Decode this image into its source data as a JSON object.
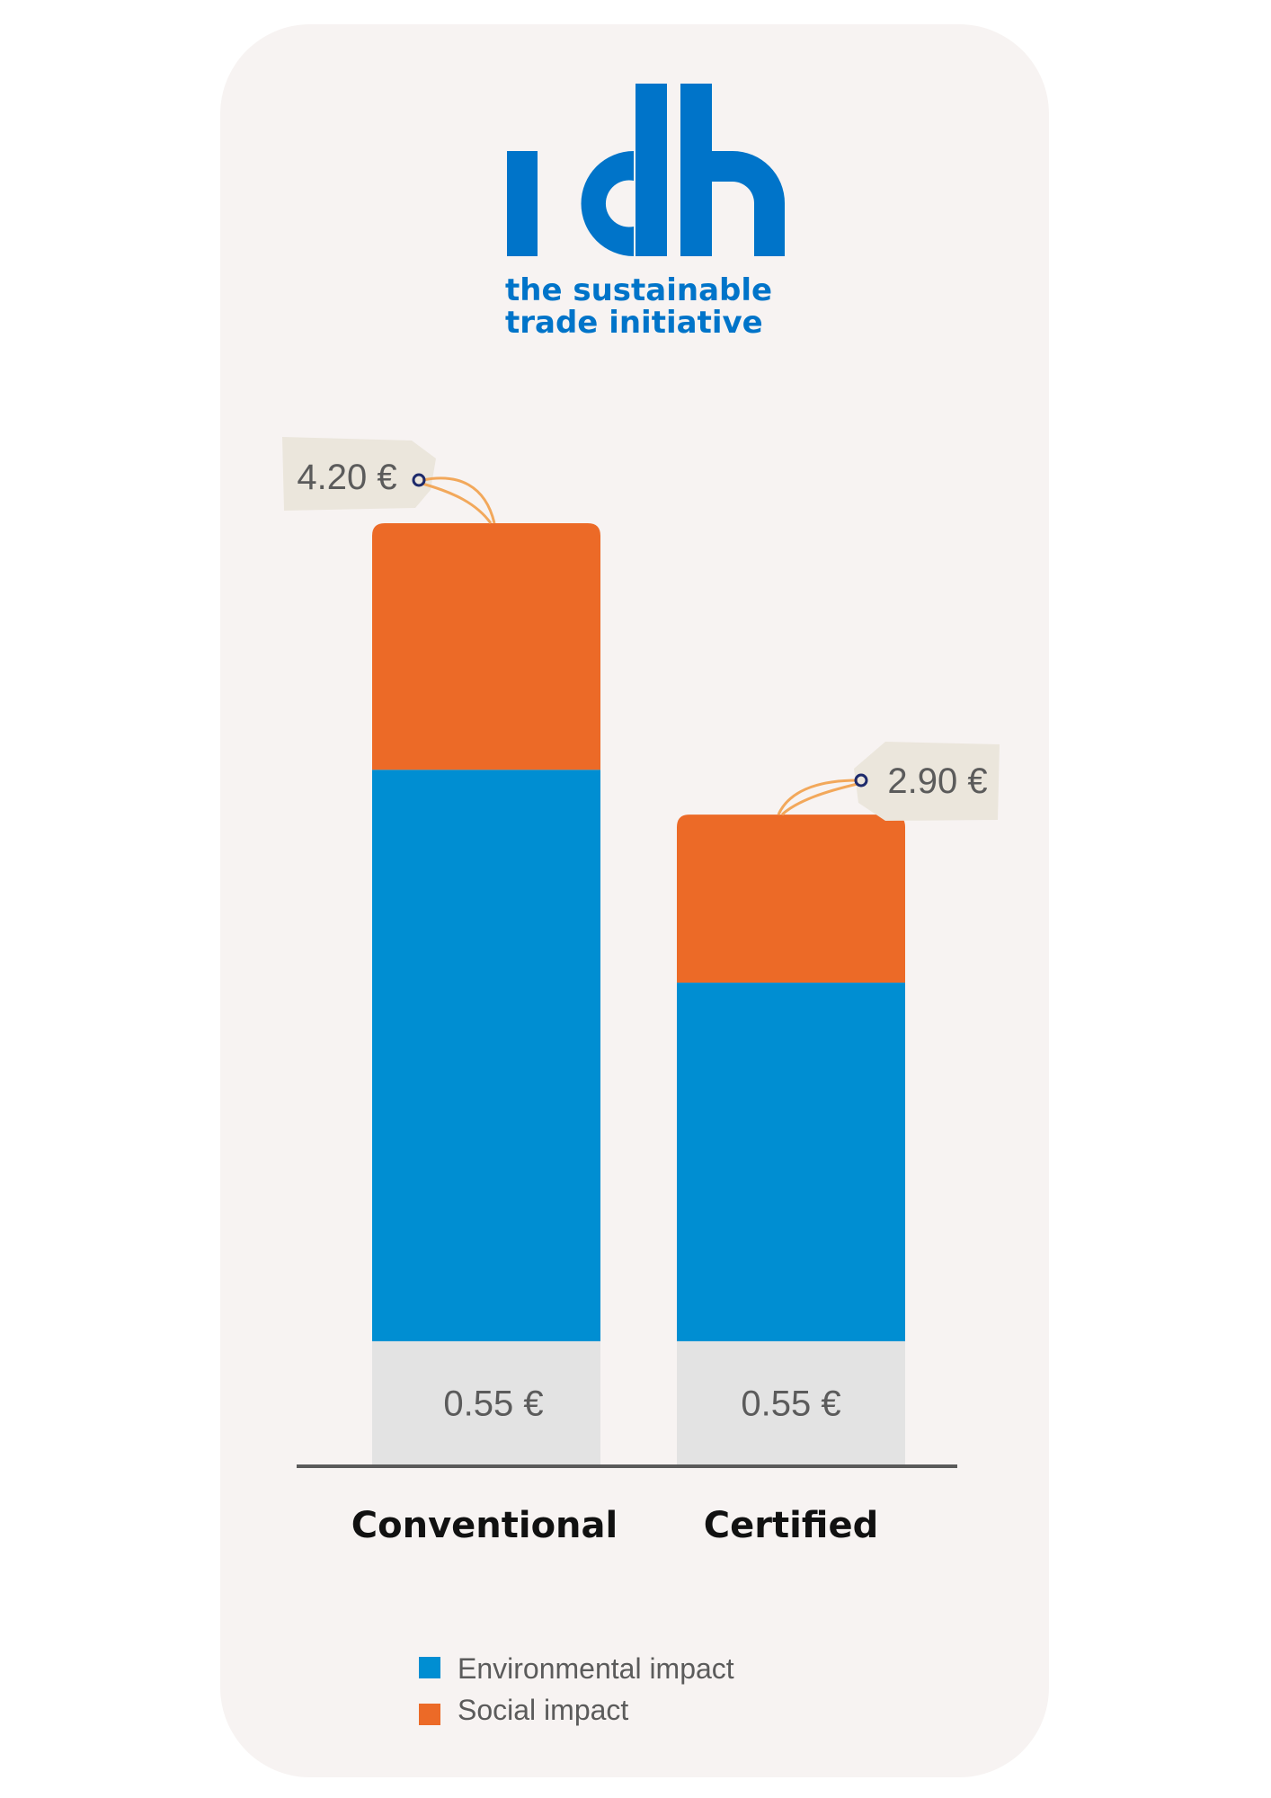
{
  "logo": {
    "wordmark": "idh",
    "line1": "the sustainable",
    "line2": "trade initiative"
  },
  "colors": {
    "card_background": "#f7f3f2",
    "environmental": "#008ed2",
    "social": "#ec6a27",
    "base": "#e3e3e3",
    "logo_blue": "#0074c9",
    "tag": "#ebe6dc",
    "string": "#f2a85b",
    "axis": "#5a5a5a",
    "price_text": "#5b5b5b",
    "category_text": "#111111"
  },
  "chart_data": {
    "type": "bar",
    "stacked": true,
    "categories": [
      "Conventional",
      "Certified"
    ],
    "series": [
      {
        "key": "base",
        "values": [
          0.55,
          0.55
        ],
        "color": "#e3e3e3"
      },
      {
        "key": "environmental",
        "name": "Environmental impact",
        "values": [
          2.55,
          1.6
        ],
        "color": "#008ed2"
      },
      {
        "key": "social",
        "name": "Social impact",
        "values": [
          1.1,
          0.75
        ],
        "color": "#ec6a27"
      }
    ],
    "base_labels": [
      "0.55 €",
      "0.55 €"
    ],
    "totals": [
      4.2,
      2.9
    ],
    "total_labels": [
      "4.20 €",
      "2.90 €"
    ],
    "ylim": [
      0,
      4.2
    ],
    "grid": false,
    "legend_position": "bottom",
    "legend": [
      {
        "label": "Environmental impact",
        "color": "#008ed2"
      },
      {
        "label": "Social impact",
        "color": "#ec6a27"
      }
    ]
  }
}
